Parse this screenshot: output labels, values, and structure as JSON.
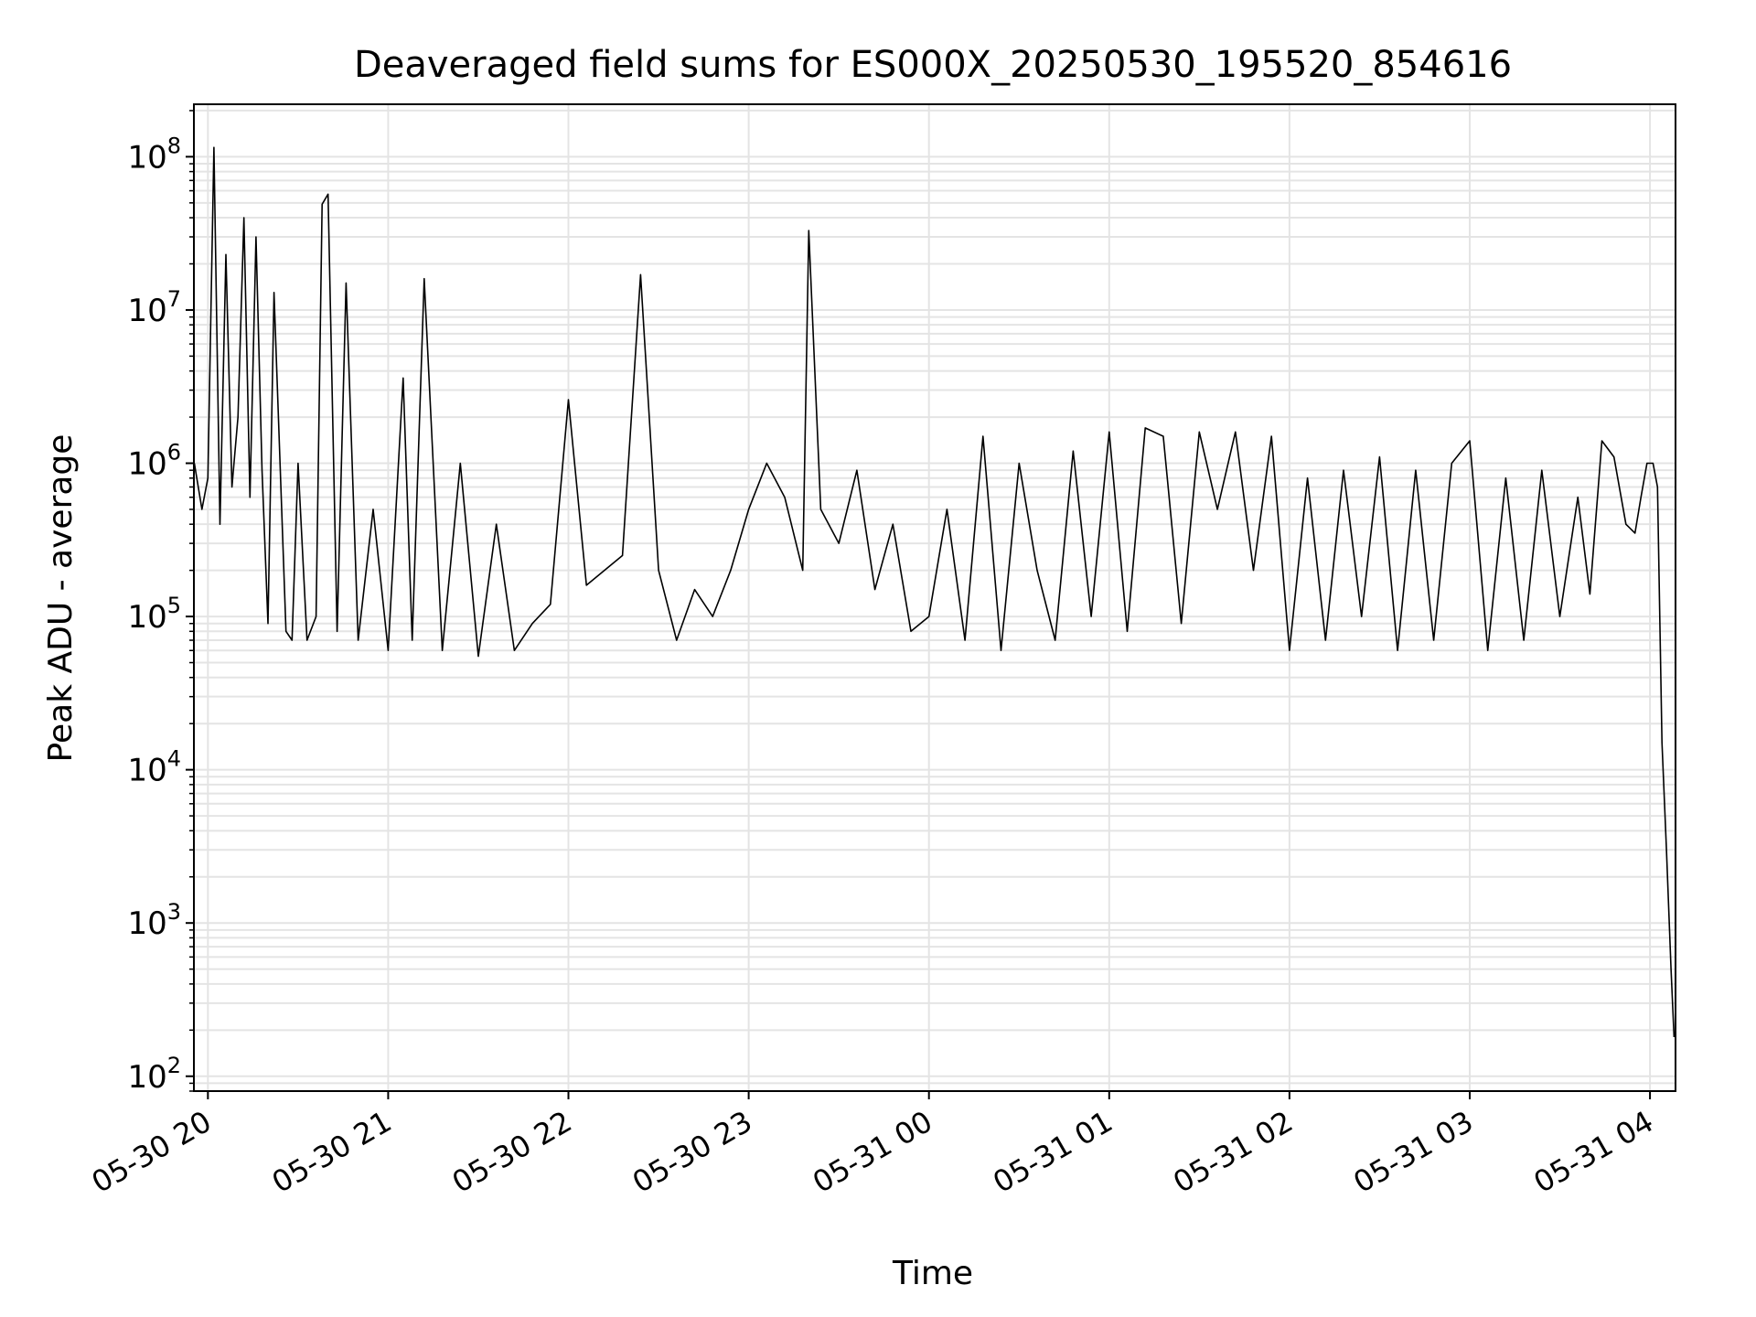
{
  "chart_data": {
    "type": "line",
    "title": "Deaveraged field sums for ES000X_20250530_195520_854616",
    "xlabel": "Time",
    "ylabel": "Peak ADU - average",
    "yscale": "log",
    "ylim": [
      80,
      220000000
    ],
    "xlim": [
      "2025-05-30 19:55:20",
      "2025-05-31 04:08:30"
    ],
    "grid": true,
    "line_color": "#000000",
    "grid_color": "#e4e4e4",
    "x_ticks": [
      {
        "value": "2025-05-30 20:00",
        "label": "05-30 20"
      },
      {
        "value": "2025-05-30 21:00",
        "label": "05-30 21"
      },
      {
        "value": "2025-05-30 22:00",
        "label": "05-30 22"
      },
      {
        "value": "2025-05-30 23:00",
        "label": "05-30 23"
      },
      {
        "value": "2025-05-31 00:00",
        "label": "05-31 00"
      },
      {
        "value": "2025-05-31 01:00",
        "label": "05-31 01"
      },
      {
        "value": "2025-05-31 02:00",
        "label": "05-31 02"
      },
      {
        "value": "2025-05-31 03:00",
        "label": "05-31 03"
      },
      {
        "value": "2025-05-31 04:00",
        "label": "05-31 04"
      }
    ],
    "y_ticks": [
      {
        "value": 100,
        "base": "10",
        "exp": "2"
      },
      {
        "value": 1000,
        "base": "10",
        "exp": "3"
      },
      {
        "value": 10000,
        "base": "10",
        "exp": "4"
      },
      {
        "value": 100000,
        "base": "10",
        "exp": "5"
      },
      {
        "value": 1000000,
        "base": "10",
        "exp": "6"
      },
      {
        "value": 10000000,
        "base": "10",
        "exp": "7"
      },
      {
        "value": 100000000,
        "base": "10",
        "exp": "8"
      }
    ],
    "series": [
      {
        "x": [
          "2025-05-30 19:55:30",
          "2025-05-30 19:58:00",
          "2025-05-30 20:00:00",
          "2025-05-30 20:02:00",
          "2025-05-30 20:04:00",
          "2025-05-30 20:06:00",
          "2025-05-30 20:08:00",
          "2025-05-30 20:10:00",
          "2025-05-30 20:12:00",
          "2025-05-30 20:14:00",
          "2025-05-30 20:16:00",
          "2025-05-30 20:18:00",
          "2025-05-30 20:20:00",
          "2025-05-30 20:22:00",
          "2025-05-30 20:24:00",
          "2025-05-30 20:26:00",
          "2025-05-30 20:28:00",
          "2025-05-30 20:30:00",
          "2025-05-30 20:33:00",
          "2025-05-30 20:36:00",
          "2025-05-30 20:38:00",
          "2025-05-30 20:40:00",
          "2025-05-30 20:43:00",
          "2025-05-30 20:46:00",
          "2025-05-30 20:50:00",
          "2025-05-30 20:55:00",
          "2025-05-30 21:00:00",
          "2025-05-30 21:05:00",
          "2025-05-30 21:08:00",
          "2025-05-30 21:12:00",
          "2025-05-30 21:18:00",
          "2025-05-30 21:24:00",
          "2025-05-30 21:30:00",
          "2025-05-30 21:36:00",
          "2025-05-30 21:42:00",
          "2025-05-30 21:48:00",
          "2025-05-30 21:54:00",
          "2025-05-30 22:00:00",
          "2025-05-30 22:06:00",
          "2025-05-30 22:12:00",
          "2025-05-30 22:18:00",
          "2025-05-30 22:24:00",
          "2025-05-30 22:30:00",
          "2025-05-30 22:36:00",
          "2025-05-30 22:42:00",
          "2025-05-30 22:48:00",
          "2025-05-30 22:54:00",
          "2025-05-30 23:00:00",
          "2025-05-30 23:06:00",
          "2025-05-30 23:12:00",
          "2025-05-30 23:18:00",
          "2025-05-30 23:20:00",
          "2025-05-30 23:24:00",
          "2025-05-30 23:30:00",
          "2025-05-30 23:36:00",
          "2025-05-30 23:42:00",
          "2025-05-30 23:48:00",
          "2025-05-30 23:54:00",
          "2025-05-31 00:00:00",
          "2025-05-31 00:06:00",
          "2025-05-31 00:12:00",
          "2025-05-31 00:18:00",
          "2025-05-31 00:24:00",
          "2025-05-31 00:30:00",
          "2025-05-31 00:36:00",
          "2025-05-31 00:42:00",
          "2025-05-31 00:48:00",
          "2025-05-31 00:54:00",
          "2025-05-31 01:00:00",
          "2025-05-31 01:06:00",
          "2025-05-31 01:12:00",
          "2025-05-31 01:18:00",
          "2025-05-31 01:24:00",
          "2025-05-31 01:30:00",
          "2025-05-31 01:36:00",
          "2025-05-31 01:42:00",
          "2025-05-31 01:48:00",
          "2025-05-31 01:54:00",
          "2025-05-31 02:00:00",
          "2025-05-31 02:06:00",
          "2025-05-31 02:12:00",
          "2025-05-31 02:18:00",
          "2025-05-31 02:24:00",
          "2025-05-31 02:30:00",
          "2025-05-31 02:36:00",
          "2025-05-31 02:42:00",
          "2025-05-31 02:48:00",
          "2025-05-31 02:54:00",
          "2025-05-31 03:00:00",
          "2025-05-31 03:06:00",
          "2025-05-31 03:12:00",
          "2025-05-31 03:18:00",
          "2025-05-31 03:24:00",
          "2025-05-31 03:30:00",
          "2025-05-31 03:36:00",
          "2025-05-31 03:40:00",
          "2025-05-31 03:44:00",
          "2025-05-31 03:48:00",
          "2025-05-31 03:52:00",
          "2025-05-31 03:55:00",
          "2025-05-31 03:57:00",
          "2025-05-31 03:59:00",
          "2025-05-31 04:01:00",
          "2025-05-31 04:02:30",
          "2025-05-31 04:04:00",
          "2025-05-31 04:05:30",
          "2025-05-31 04:07:00",
          "2025-05-31 04:08:00"
        ],
        "y": [
          1000000,
          500000,
          800000,
          115000000,
          400000,
          23000000,
          700000,
          2000000,
          40000000,
          600000,
          30000000,
          900000,
          90000,
          13000000,
          1000000,
          80000,
          70000,
          1000000,
          70000,
          100000,
          49000000,
          57000000,
          80000,
          15000000,
          70000,
          500000,
          60000,
          3600000,
          70000,
          16000000,
          60000,
          1000000,
          55000,
          400000,
          60000,
          90000,
          120000,
          2600000,
          160000,
          200000,
          250000,
          17000000,
          200000,
          70000,
          150000,
          100000,
          200000,
          500000,
          1000000,
          600000,
          200000,
          33000000,
          500000,
          300000,
          900000,
          150000,
          400000,
          80000,
          100000,
          500000,
          70000,
          1500000,
          60000,
          1000000,
          200000,
          70000,
          1200000,
          100000,
          1600000,
          80000,
          1700000,
          1500000,
          90000,
          1600000,
          500000,
          1600000,
          200000,
          1500000,
          60000,
          800000,
          70000,
          900000,
          100000,
          1100000,
          60000,
          900000,
          70000,
          1000000,
          1400000,
          60000,
          800000,
          70000,
          900000,
          100000,
          600000,
          140000,
          1400000,
          1100000,
          400000,
          350000,
          600000,
          1000000,
          1000000,
          700000,
          15000,
          3000,
          500,
          180
        ]
      }
    ]
  }
}
